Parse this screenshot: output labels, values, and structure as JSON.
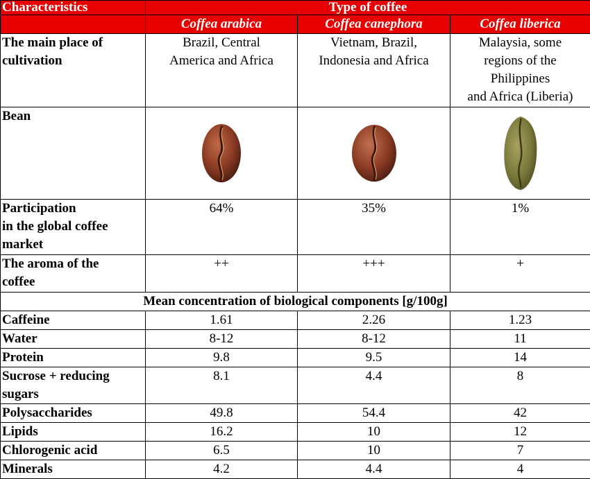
{
  "header": {
    "characteristics": "Characteristics",
    "type_of_coffee": "Type of coffee",
    "species": [
      "Coffea arabica",
      "Coffea canephora",
      "Coffea liberica"
    ]
  },
  "rows": {
    "cultivation": {
      "label_line1": "The main place of",
      "label_line2": "cultivation",
      "values": [
        [
          "Brazil, Central",
          "America and Africa"
        ],
        [
          "Vietnam, Brazil,",
          "Indonesia and Africa"
        ],
        [
          "Malaysia, some",
          "regions of the",
          "Philippines",
          "and Africa (Liberia)"
        ]
      ]
    },
    "bean": {
      "label": "Bean",
      "colors": [
        "#8a3a22",
        "#8c3b24",
        "#7a7a3a"
      ]
    },
    "market": {
      "label_line1": "Participation",
      "label_line2": "in the global coffee",
      "label_line3": "market",
      "values": [
        "64%",
        "35%",
        "1%"
      ]
    },
    "aroma": {
      "label_line1": "The aroma of the",
      "label_line2": "coffee",
      "values": [
        "++",
        "+++",
        "+"
      ]
    }
  },
  "section_title": "Mean concentration of biological components [g/100g]",
  "components": [
    {
      "label": [
        "Caffeine"
      ],
      "values": [
        "1.61",
        "2.26",
        "1.23"
      ]
    },
    {
      "label": [
        "Water"
      ],
      "values": [
        "8-12",
        "8-12",
        "11"
      ]
    },
    {
      "label": [
        "Protein"
      ],
      "values": [
        "9.8",
        "9.5",
        "14"
      ]
    },
    {
      "label": [
        "Sucrose + reducing",
        "sugars"
      ],
      "values": [
        "8.1",
        "4.4",
        "8"
      ]
    },
    {
      "label": [
        "Polysaccharides"
      ],
      "values": [
        "49.8",
        "54.4",
        "42"
      ]
    },
    {
      "label": [
        "Lipids"
      ],
      "values": [
        "16.2",
        "10",
        "12"
      ]
    },
    {
      "label": [
        "Chlorogenic acid"
      ],
      "values": [
        "6.5",
        "10",
        "7"
      ]
    },
    {
      "label": [
        "Minerals"
      ],
      "values": [
        "4.2",
        "4.4",
        "4"
      ]
    }
  ],
  "colors": {
    "header_bg": "#e60000",
    "header_text": "#ffffff",
    "border": "#000000"
  }
}
